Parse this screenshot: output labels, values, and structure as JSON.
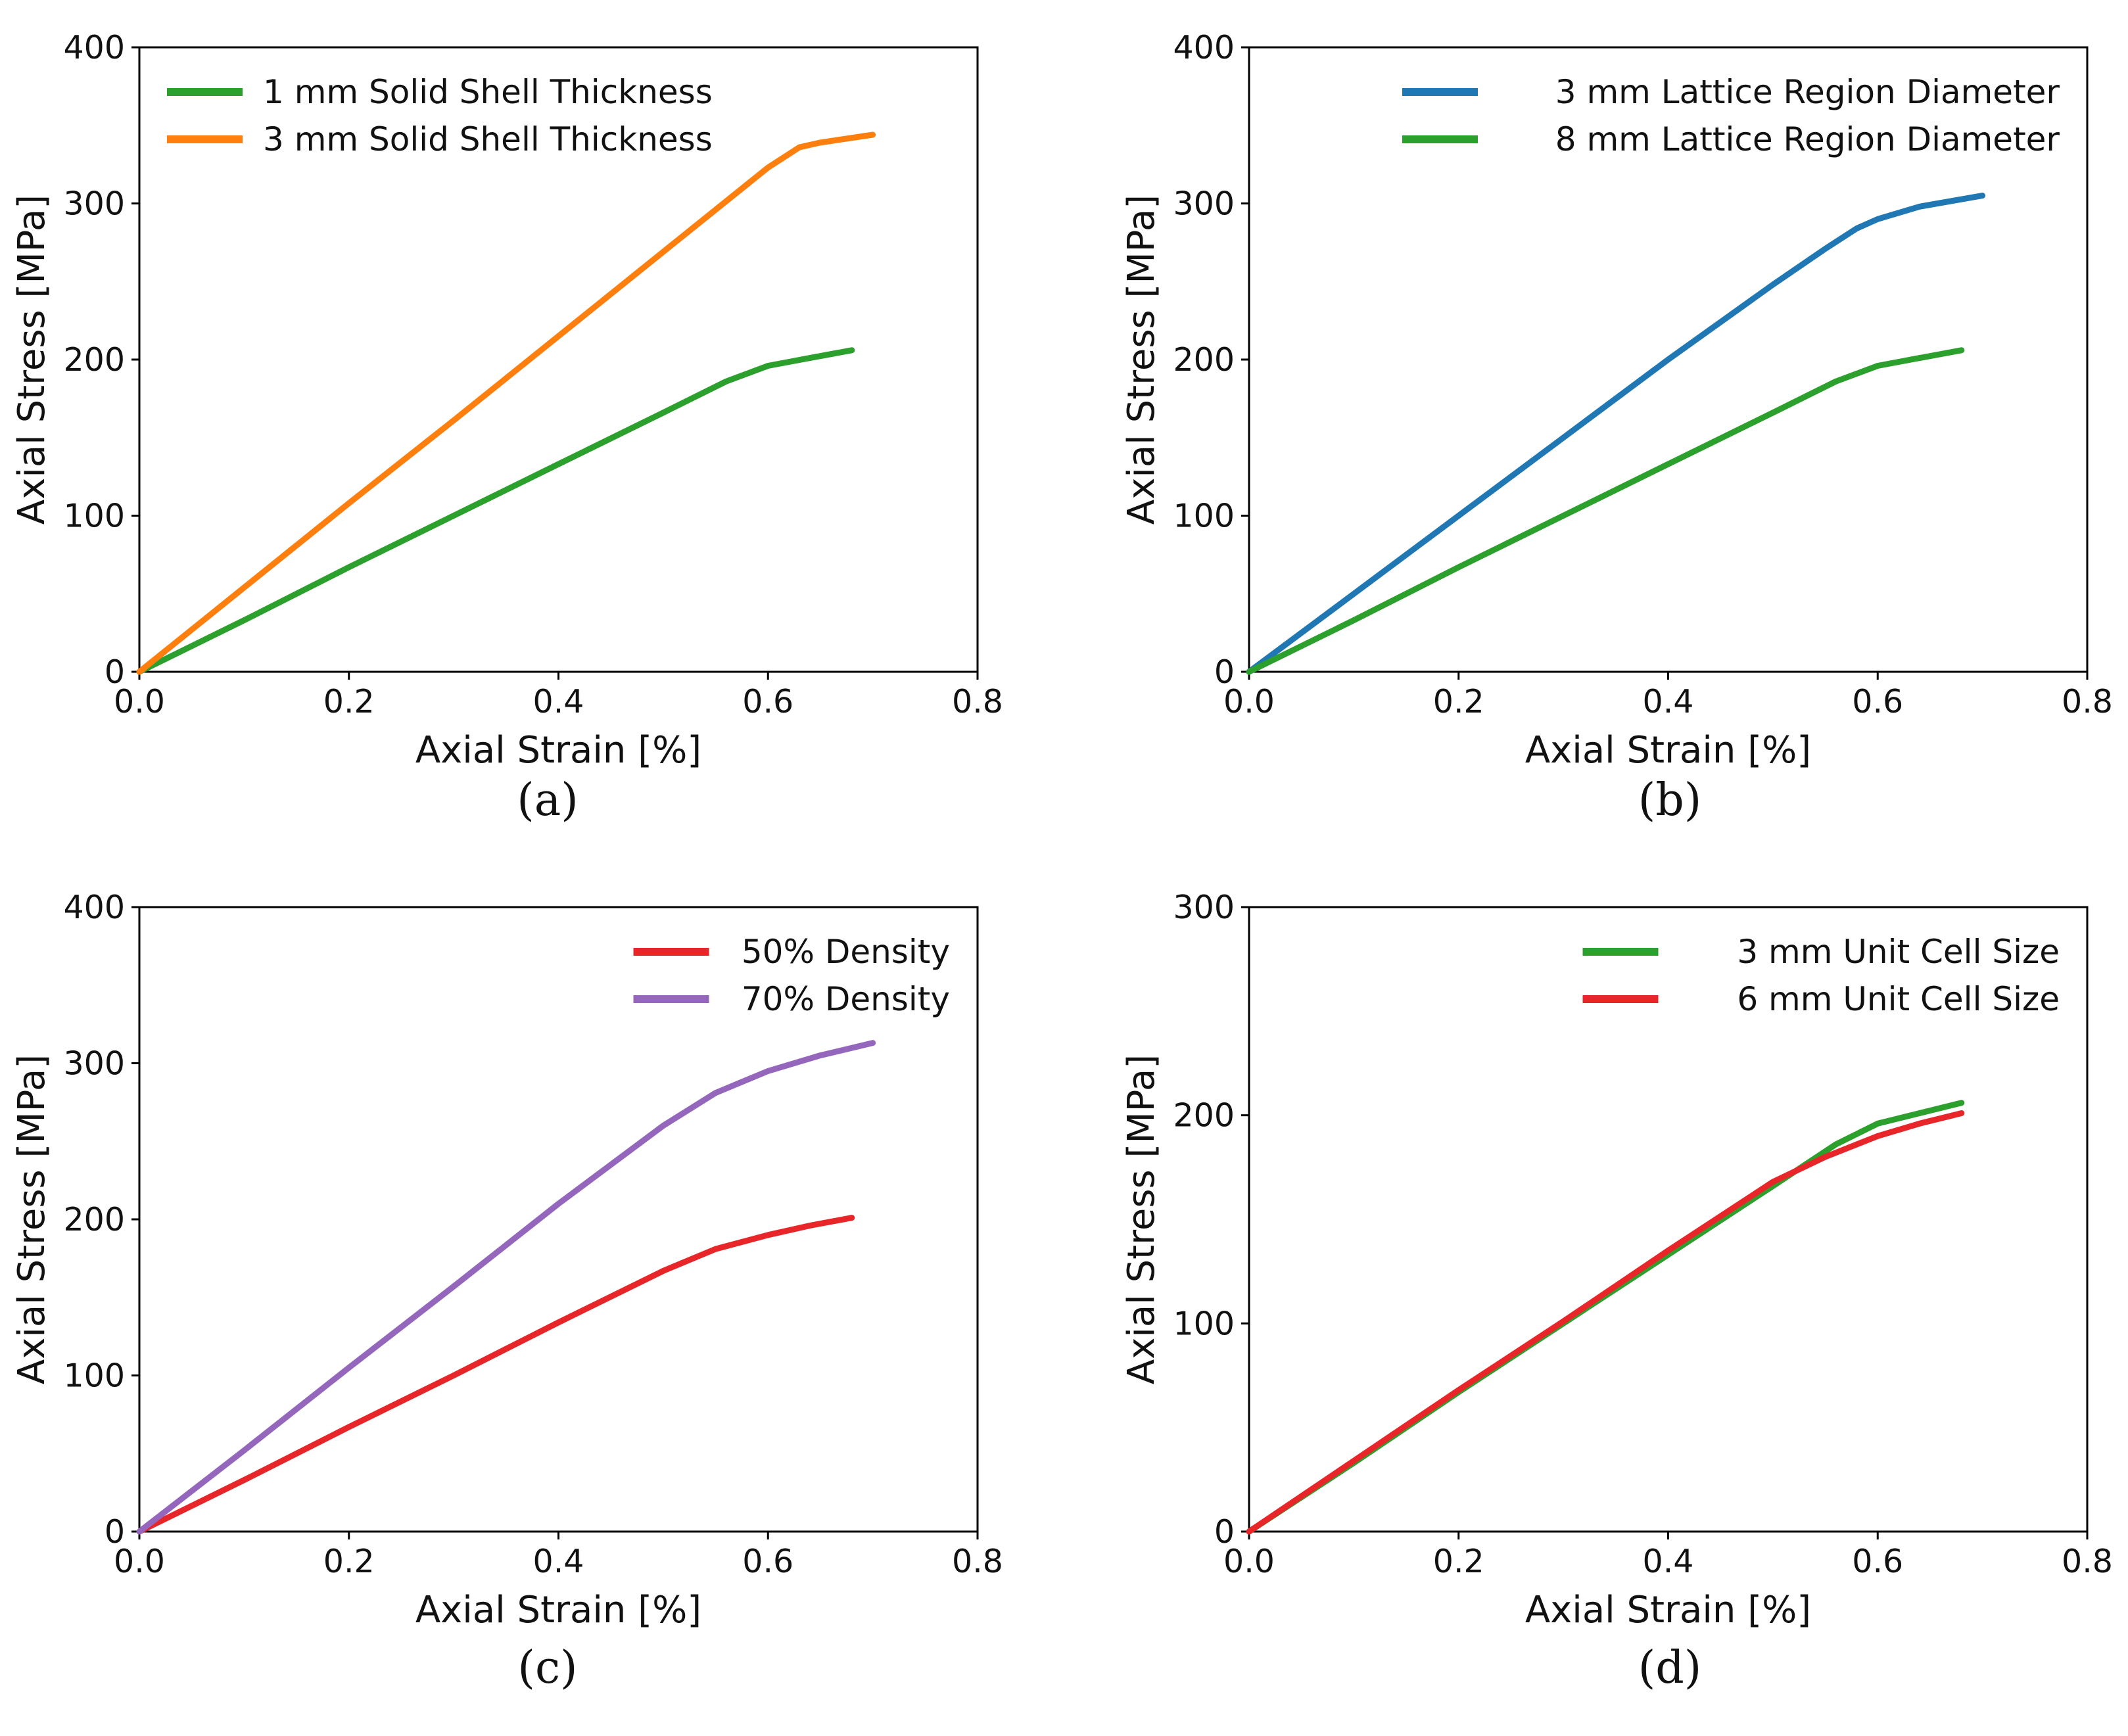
{
  "chart_data": [
    {
      "type": "line",
      "caption": "(a)",
      "xlabel": "Axial Strain [%]",
      "ylabel": "Axial Stress [MPa]",
      "xlim": [
        0,
        0.8
      ],
      "ylim": [
        0,
        400
      ],
      "xticks": [
        "0.0",
        "0.2",
        "0.4",
        "0.6",
        "0.8"
      ],
      "yticks": [
        "0",
        "100",
        "200",
        "300",
        "400"
      ],
      "legend_position": "upper-left",
      "series": [
        {
          "name": "1 mm Solid Shell Thickness",
          "color": "#2ca02c",
          "x": [
            0,
            0.1,
            0.2,
            0.3,
            0.4,
            0.5,
            0.56,
            0.6,
            0.64,
            0.68
          ],
          "y": [
            0,
            33,
            67,
            100,
            133,
            166,
            186,
            196,
            201,
            206
          ]
        },
        {
          "name": "3 mm Solid Shell Thickness",
          "color": "#ff7f0e",
          "x": [
            0,
            0.1,
            0.2,
            0.3,
            0.4,
            0.5,
            0.6,
            0.63,
            0.65,
            0.7
          ],
          "y": [
            0,
            54,
            108,
            161,
            215,
            269,
            323,
            336,
            339,
            344
          ]
        }
      ]
    },
    {
      "type": "line",
      "caption": "(b)",
      "xlabel": "Axial Strain [%]",
      "ylabel": "Axial Stress [MPa]",
      "xlim": [
        0,
        0.8
      ],
      "ylim": [
        0,
        400
      ],
      "xticks": [
        "0.0",
        "0.2",
        "0.4",
        "0.6",
        "0.8"
      ],
      "yticks": [
        "0",
        "100",
        "200",
        "300",
        "400"
      ],
      "legend_position": "upper-right",
      "series": [
        {
          "name": "3 mm Lattice Region Diameter",
          "color": "#1f77b4",
          "x": [
            0,
            0.1,
            0.2,
            0.3,
            0.4,
            0.5,
            0.55,
            0.58,
            0.6,
            0.64,
            0.7
          ],
          "y": [
            0,
            50,
            100,
            150,
            200,
            248,
            271,
            284,
            290,
            298,
            305
          ]
        },
        {
          "name": "8 mm Lattice Region Diameter",
          "color": "#2ca02c",
          "x": [
            0,
            0.1,
            0.2,
            0.3,
            0.4,
            0.5,
            0.56,
            0.6,
            0.64,
            0.68
          ],
          "y": [
            0,
            33,
            67,
            100,
            133,
            166,
            186,
            196,
            201,
            206
          ]
        }
      ]
    },
    {
      "type": "line",
      "caption": "(c)",
      "xlabel": "Axial Strain [%]",
      "ylabel": "Axial Stress [MPa]",
      "xlim": [
        0,
        0.8
      ],
      "ylim": [
        0,
        400
      ],
      "xticks": [
        "0.0",
        "0.2",
        "0.4",
        "0.6",
        "0.8"
      ],
      "yticks": [
        "0",
        "100",
        "200",
        "300",
        "400"
      ],
      "legend_position": "upper-right",
      "series": [
        {
          "name": "50% Density",
          "color": "#e8262a",
          "x": [
            0,
            0.1,
            0.2,
            0.3,
            0.4,
            0.5,
            0.55,
            0.6,
            0.64,
            0.68
          ],
          "y": [
            0,
            33,
            67,
            100,
            134,
            167,
            181,
            190,
            196,
            201
          ]
        },
        {
          "name": "70% Density",
          "color": "#9467bd",
          "x": [
            0,
            0.1,
            0.2,
            0.3,
            0.4,
            0.5,
            0.55,
            0.6,
            0.65,
            0.7
          ],
          "y": [
            0,
            52,
            105,
            157,
            210,
            260,
            281,
            295,
            305,
            313
          ]
        }
      ]
    },
    {
      "type": "line",
      "caption": "(d)",
      "xlabel": "Axial Strain [%]",
      "ylabel": "Axial Stress [MPa]",
      "xlim": [
        0,
        0.8
      ],
      "ylim": [
        0,
        300
      ],
      "xticks": [
        "0.0",
        "0.2",
        "0.4",
        "0.6",
        "0.8"
      ],
      "yticks": [
        "0",
        "100",
        "200",
        "300"
      ],
      "legend_position": "upper-right",
      "series": [
        {
          "name": "3 mm Unit Cell Size",
          "color": "#2ca02c",
          "x": [
            0,
            0.1,
            0.2,
            0.3,
            0.4,
            0.5,
            0.56,
            0.6,
            0.64,
            0.68
          ],
          "y": [
            0,
            33,
            67,
            100,
            133,
            166,
            186,
            196,
            201,
            206
          ]
        },
        {
          "name": "6 mm Unit Cell Size",
          "color": "#e8262a",
          "x": [
            0,
            0.1,
            0.2,
            0.3,
            0.4,
            0.5,
            0.55,
            0.6,
            0.64,
            0.68
          ],
          "y": [
            0,
            34,
            68,
            101,
            135,
            168,
            180,
            190,
            196,
            201
          ]
        }
      ]
    }
  ]
}
